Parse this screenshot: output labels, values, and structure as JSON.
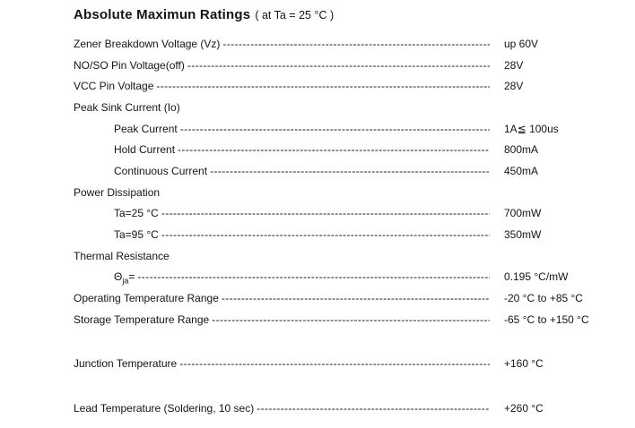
{
  "page": {
    "title": "Absolute Maximun Ratings",
    "title_note": "( at Ta = 25 °C )"
  },
  "leader_char": "-",
  "rows": [
    {
      "label": "Zener Breakdown Voltage (Vz)",
      "value": "up 60V",
      "indent": 0,
      "leader": true
    },
    {
      "label": "NO/SO Pin Voltage(off)",
      "value": "28V",
      "indent": 0,
      "leader": true
    },
    {
      "label": "VCC Pin Voltage",
      "value": "28V",
      "indent": 0,
      "leader": true
    },
    {
      "label": "Peak Sink Current (Io)",
      "value": "",
      "indent": 0,
      "leader": false,
      "header": true
    },
    {
      "label": "Peak Current",
      "value": "1A≦ 100us",
      "indent": 1,
      "leader": true
    },
    {
      "label": "Hold Current",
      "value": "800mA",
      "indent": 1,
      "leader": true
    },
    {
      "label": "Continuous Current",
      "value": "450mA",
      "indent": 1,
      "leader": true
    },
    {
      "label": "Power Dissipation",
      "value": "",
      "indent": 0,
      "leader": false,
      "header": true
    },
    {
      "label": "Ta=25 °C",
      "value": "700mW",
      "indent": 1,
      "leader": true
    },
    {
      "label": "Ta=95 °C",
      "value": "350mW",
      "indent": 1,
      "leader": true
    },
    {
      "label": "Thermal Resistance",
      "value": "",
      "indent": 0,
      "leader": false,
      "header": true
    },
    {
      "label": "Θ",
      "label_sub": "ja",
      "label_suffix": "=",
      "value": "0.195 °C/mW",
      "indent": 1,
      "leader": true
    },
    {
      "label": "Operating Temperature Range",
      "value": "-20 °C to +85 °C",
      "indent": 0,
      "leader": true
    },
    {
      "label": "Storage Temperature Range",
      "value": "-65 °C to +150 °C",
      "indent": 0,
      "leader": true
    },
    {
      "label": "Junction Temperature",
      "value": "+160 °C",
      "indent": 0,
      "leader": true,
      "gap_before": true
    },
    {
      "label": "Lead Temperature (Soldering, 10 sec)",
      "value": "+260 °C",
      "indent": 0,
      "leader": true,
      "gap_before": true
    }
  ]
}
